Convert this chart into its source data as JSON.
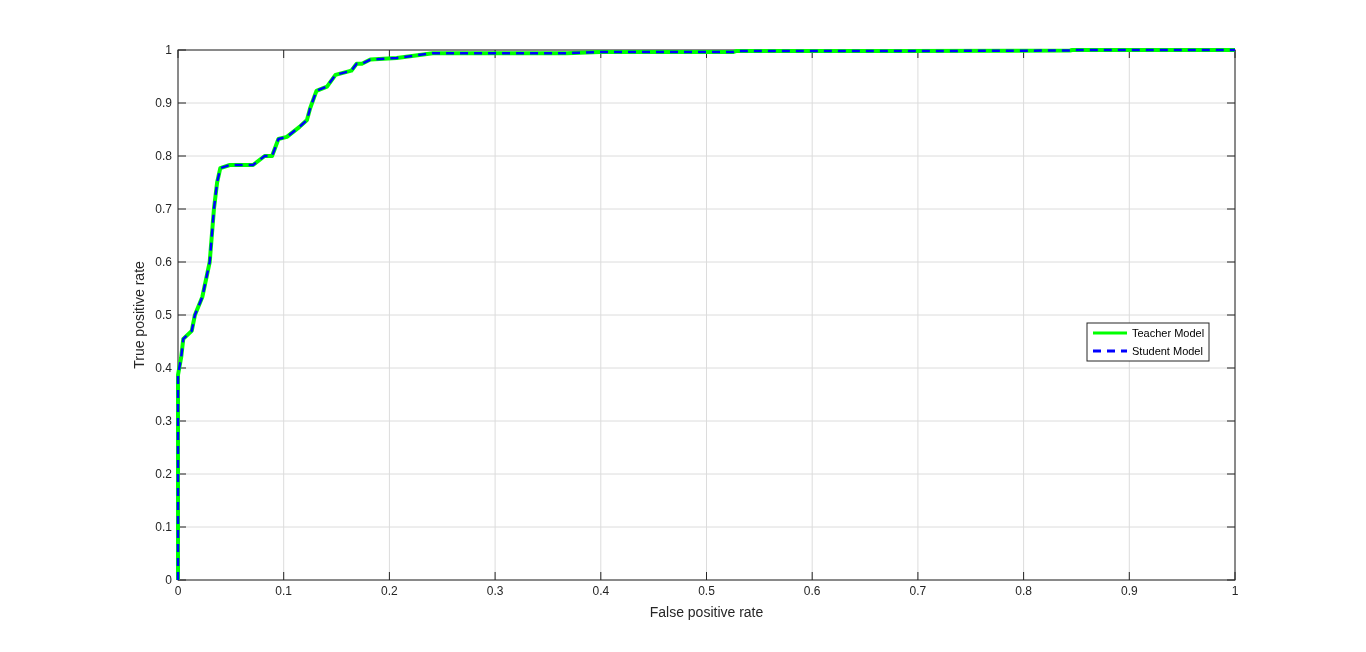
{
  "chart_data": {
    "type": "line",
    "xlabel": "False positive rate",
    "ylabel": "True positive rate",
    "xlim": [
      0,
      1
    ],
    "ylim": [
      0,
      1
    ],
    "xticks": [
      0,
      0.1,
      0.2,
      0.3,
      0.4,
      0.5,
      0.6,
      0.7,
      0.8,
      0.9,
      1
    ],
    "yticks": [
      0,
      0.1,
      0.2,
      0.3,
      0.4,
      0.5,
      0.6,
      0.7,
      0.8,
      0.9,
      1
    ],
    "grid": true,
    "legend": "right",
    "x": [
      0,
      0,
      0.003,
      0.005,
      0.013,
      0.016,
      0.023,
      0.03,
      0.034,
      0.037,
      0.04,
      0.049,
      0.071,
      0.082,
      0.089,
      0.095,
      0.103,
      0.115,
      0.122,
      0.125,
      0.131,
      0.141,
      0.149,
      0.164,
      0.169,
      0.174,
      0.182,
      0.207,
      0.241,
      0.368,
      0.399,
      0.525,
      0.528,
      0.685,
      0.844,
      0.846,
      1
    ],
    "series": [
      {
        "name": "Teacher Model",
        "color": "#00ff00",
        "line_style": "solid",
        "values": [
          0,
          0.387,
          0.42,
          0.455,
          0.47,
          0.5,
          0.534,
          0.6,
          0.7,
          0.75,
          0.777,
          0.783,
          0.783,
          0.8,
          0.8,
          0.832,
          0.836,
          0.855,
          0.868,
          0.89,
          0.923,
          0.931,
          0.953,
          0.961,
          0.974,
          0.974,
          0.982,
          0.985,
          0.994,
          0.994,
          0.996,
          0.996,
          0.998,
          0.998,
          0.999,
          1,
          1
        ]
      },
      {
        "name": "Student Model",
        "color": "#0000ff",
        "line_style": "dashed",
        "values": [
          0,
          0.387,
          0.42,
          0.455,
          0.47,
          0.5,
          0.534,
          0.6,
          0.7,
          0.75,
          0.777,
          0.783,
          0.783,
          0.8,
          0.8,
          0.832,
          0.836,
          0.855,
          0.868,
          0.89,
          0.923,
          0.931,
          0.953,
          0.961,
          0.974,
          0.974,
          0.982,
          0.985,
          0.994,
          0.994,
          0.996,
          0.996,
          0.998,
          0.998,
          0.999,
          1,
          1
        ]
      }
    ]
  }
}
